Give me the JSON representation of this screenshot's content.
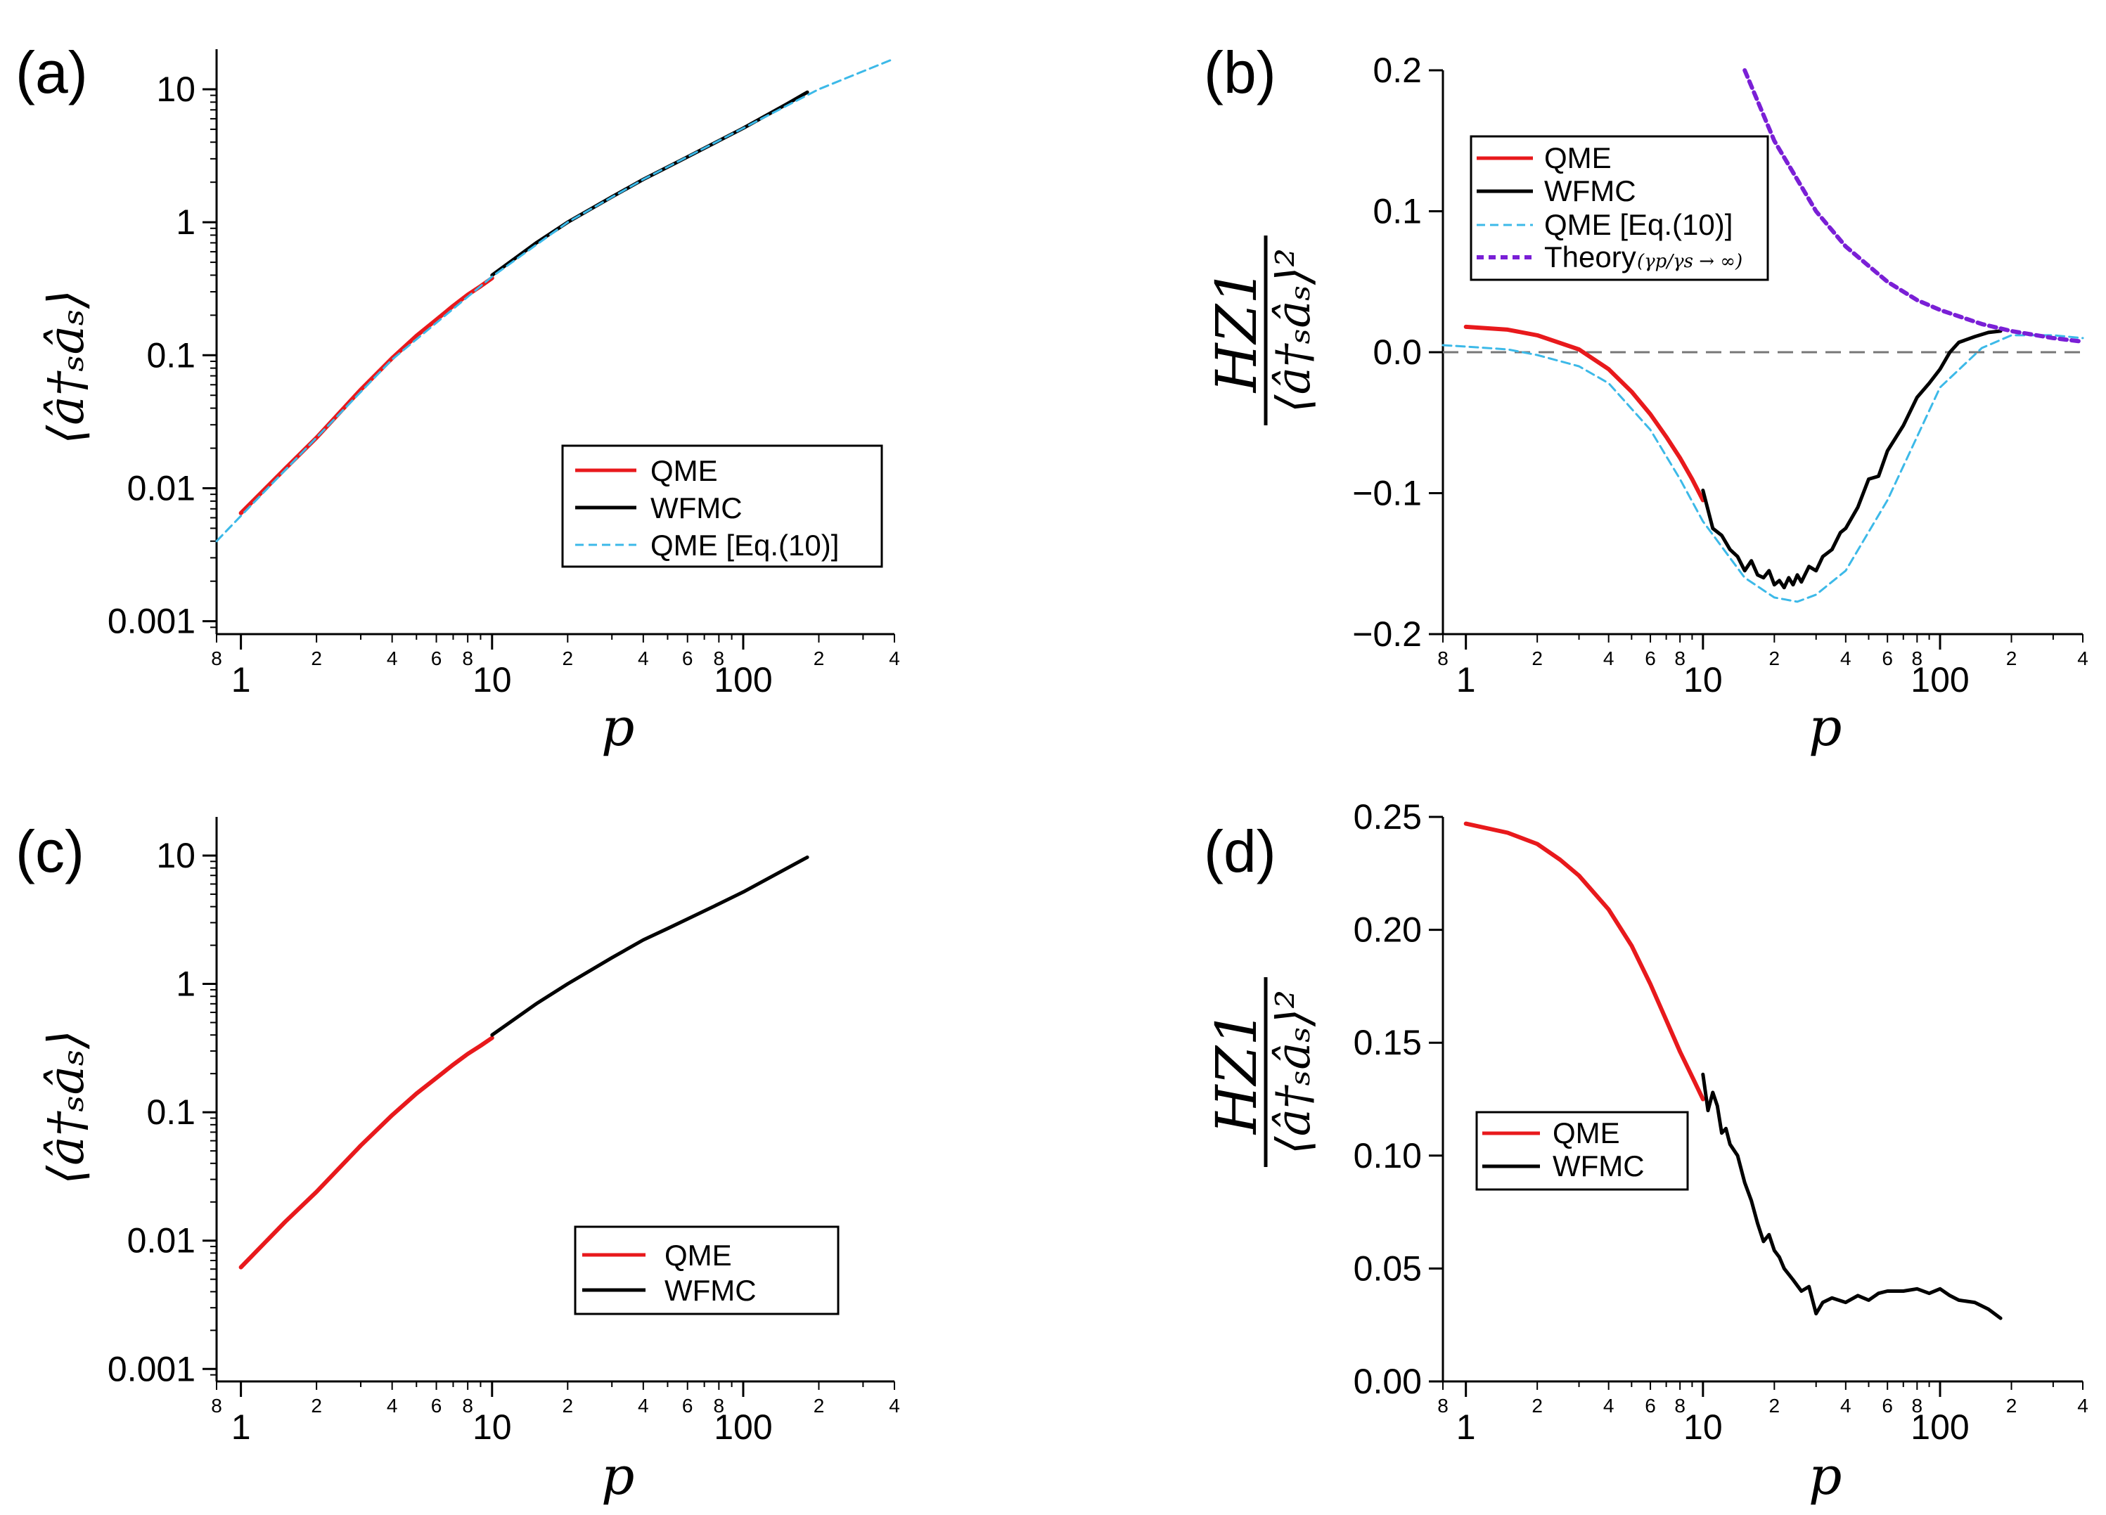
{
  "panels": {
    "a": {
      "label": "(a)"
    },
    "b": {
      "label": "(b)"
    },
    "c": {
      "label": "(c)"
    },
    "d": {
      "label": "(d)"
    }
  },
  "axis_text": {
    "xlabel": "p",
    "ylabel_ac": "⟨â†ₛâₛ⟩",
    "ylabel_bd_top": "HZ1",
    "ylabel_bd_bottom": "⟨â†ₛâₛ⟩²"
  },
  "legend_text": {
    "qme": "QME",
    "wfmc": "WFMC",
    "qme_eq10": "QME [Eq.(10)]",
    "theory": "Theory",
    "theory_note": "(γp/γs → ∞)"
  },
  "colors": {
    "qme": "#e8191c",
    "wfmc": "#000000",
    "qme_eq10": "#3cb9e8",
    "theory": "#7a1fd6",
    "zero_line": "#777777"
  },
  "chart_data": [
    {
      "id": "a",
      "type": "line",
      "x_scale": "log",
      "y_scale": "log",
      "xlim": [
        0.8,
        400
      ],
      "ylim": [
        0.0008,
        20
      ],
      "x_ticks": [
        "1",
        "10",
        "100"
      ],
      "x_minor_ticks": [
        "8",
        "2",
        "4",
        "6",
        "8",
        "2",
        "4",
        "6",
        "8",
        "2",
        "4"
      ],
      "y_ticks": [
        "0.001",
        "0.01",
        "0.1",
        "1",
        "10"
      ],
      "legend": [
        "QME",
        "WFMC",
        "QME [Eq.(10)]"
      ],
      "legend_position": "lower-right",
      "series": [
        {
          "name": "QME",
          "x": [
            1,
            1.5,
            2,
            3,
            4,
            5,
            6,
            7,
            8,
            9,
            10
          ],
          "y": [
            0.0065,
            0.014,
            0.024,
            0.055,
            0.095,
            0.14,
            0.185,
            0.235,
            0.285,
            0.33,
            0.38
          ]
        },
        {
          "name": "WFMC",
          "x": [
            10,
            15,
            20,
            30,
            40,
            50,
            60,
            80,
            100,
            150,
            180
          ],
          "y": [
            0.4,
            0.7,
            1.0,
            1.55,
            2.1,
            2.6,
            3.1,
            4.1,
            5.1,
            7.8,
            9.5
          ]
        },
        {
          "name": "QME [Eq.(10)]",
          "x": [
            0.8,
            1,
            2,
            4,
            10,
            20,
            40,
            100,
            200,
            400
          ],
          "y": [
            0.004,
            0.0062,
            0.024,
            0.093,
            0.39,
            1.0,
            2.1,
            5.1,
            10,
            17
          ]
        }
      ]
    },
    {
      "id": "b",
      "type": "line",
      "x_scale": "log",
      "y_scale": "linear",
      "xlim": [
        0.8,
        400
      ],
      "ylim": [
        -0.2,
        0.2
      ],
      "x_ticks": [
        "1",
        "10",
        "100"
      ],
      "x_minor_ticks": [
        "8",
        "2",
        "4",
        "6",
        "8",
        "2",
        "4",
        "6",
        "8",
        "2",
        "4"
      ],
      "y_ticks": [
        "−0.2",
        "−0.1",
        "0.0",
        "0.1",
        "0.2"
      ],
      "legend": [
        "QME",
        "WFMC",
        "QME [Eq.(10)]",
        "Theory (γp/γs → ∞)"
      ],
      "legend_position": "upper-left",
      "zero_line": true,
      "series": [
        {
          "name": "QME",
          "x": [
            1,
            1.5,
            2,
            3,
            4,
            5,
            6,
            7,
            8,
            9,
            10
          ],
          "y": [
            0.018,
            0.016,
            0.012,
            0.002,
            -0.012,
            -0.028,
            -0.044,
            -0.06,
            -0.075,
            -0.09,
            -0.105
          ]
        },
        {
          "name": "WFMC",
          "x": [
            10,
            11,
            12,
            13,
            14,
            15,
            16,
            17,
            18,
            19,
            20,
            21,
            22,
            23,
            24,
            25,
            26,
            28,
            30,
            32,
            35,
            38,
            40,
            45,
            50,
            55,
            60,
            70,
            80,
            90,
            100,
            110,
            120,
            140,
            160,
            180
          ],
          "y": [
            -0.098,
            -0.125,
            -0.13,
            -0.14,
            -0.145,
            -0.155,
            -0.148,
            -0.158,
            -0.16,
            -0.155,
            -0.165,
            -0.162,
            -0.167,
            -0.16,
            -0.165,
            -0.158,
            -0.163,
            -0.152,
            -0.155,
            -0.145,
            -0.14,
            -0.128,
            -0.125,
            -0.11,
            -0.09,
            -0.088,
            -0.07,
            -0.052,
            -0.032,
            -0.022,
            -0.012,
            0.0,
            0.007,
            0.011,
            0.014,
            0.015
          ]
        },
        {
          "name": "QME [Eq.(10)]",
          "x": [
            0.8,
            1,
            1.5,
            2,
            3,
            4,
            6,
            8,
            10,
            15,
            20,
            25,
            30,
            40,
            60,
            80,
            100,
            150,
            200,
            300,
            400
          ],
          "y": [
            0.005,
            0.004,
            0.002,
            -0.002,
            -0.01,
            -0.022,
            -0.055,
            -0.09,
            -0.12,
            -0.16,
            -0.174,
            -0.177,
            -0.172,
            -0.155,
            -0.105,
            -0.06,
            -0.025,
            0.003,
            0.012,
            0.012,
            0.01
          ]
        },
        {
          "name": "Theory (γp/γs → ∞)",
          "x": [
            15,
            20,
            30,
            40,
            60,
            80,
            100,
            150,
            200,
            300,
            400
          ],
          "y": [
            0.2,
            0.15,
            0.1,
            0.075,
            0.05,
            0.037,
            0.03,
            0.02,
            0.015,
            0.01,
            0.0075
          ]
        }
      ]
    },
    {
      "id": "c",
      "type": "line",
      "x_scale": "log",
      "y_scale": "log",
      "xlim": [
        0.8,
        400
      ],
      "ylim": [
        0.0008,
        20
      ],
      "x_ticks": [
        "1",
        "10",
        "100"
      ],
      "x_minor_ticks": [
        "8",
        "2",
        "4",
        "6",
        "8",
        "2",
        "4",
        "6",
        "8",
        "2",
        "4"
      ],
      "y_ticks": [
        "0.001",
        "0.01",
        "0.1",
        "1",
        "10"
      ],
      "legend": [
        "QME",
        "WFMC"
      ],
      "legend_position": "lower-right",
      "series": [
        {
          "name": "QME",
          "x": [
            1,
            1.5,
            2,
            3,
            4,
            5,
            6,
            7,
            8,
            9,
            10
          ],
          "y": [
            0.0062,
            0.014,
            0.024,
            0.055,
            0.095,
            0.14,
            0.185,
            0.235,
            0.285,
            0.33,
            0.38
          ]
        },
        {
          "name": "WFMC",
          "x": [
            10,
            15,
            20,
            30,
            40,
            50,
            60,
            80,
            100,
            150,
            180
          ],
          "y": [
            0.4,
            0.7,
            1.0,
            1.6,
            2.2,
            2.7,
            3.2,
            4.2,
            5.2,
            8.0,
            9.7
          ]
        }
      ]
    },
    {
      "id": "d",
      "type": "line",
      "x_scale": "log",
      "y_scale": "linear",
      "xlim": [
        0.8,
        400
      ],
      "ylim": [
        0,
        0.25
      ],
      "x_ticks": [
        "1",
        "10",
        "100"
      ],
      "x_minor_ticks": [
        "8",
        "2",
        "4",
        "6",
        "8",
        "2",
        "4",
        "6",
        "8",
        "2",
        "4"
      ],
      "y_ticks": [
        "0.00",
        "0.05",
        "0.10",
        "0.15",
        "0.20",
        "0.25"
      ],
      "legend": [
        "QME",
        "WFMC"
      ],
      "legend_position": "center-left",
      "series": [
        {
          "name": "QME",
          "x": [
            1,
            1.5,
            2,
            2.5,
            3,
            4,
            5,
            6,
            7,
            8,
            9,
            10
          ],
          "y": [
            0.247,
            0.243,
            0.238,
            0.231,
            0.224,
            0.209,
            0.193,
            0.176,
            0.16,
            0.146,
            0.135,
            0.125
          ]
        },
        {
          "name": "WFMC",
          "x": [
            10,
            10.5,
            11,
            11.5,
            12,
            12.5,
            13,
            14,
            15,
            16,
            17,
            18,
            19,
            20,
            21,
            22,
            24,
            26,
            28,
            30,
            32,
            35,
            40,
            45,
            50,
            55,
            60,
            70,
            80,
            90,
            100,
            110,
            120,
            140,
            160,
            180
          ],
          "y": [
            0.136,
            0.12,
            0.128,
            0.122,
            0.11,
            0.112,
            0.105,
            0.1,
            0.088,
            0.08,
            0.07,
            0.062,
            0.065,
            0.058,
            0.055,
            0.05,
            0.045,
            0.04,
            0.042,
            0.03,
            0.035,
            0.037,
            0.035,
            0.038,
            0.036,
            0.039,
            0.04,
            0.04,
            0.041,
            0.039,
            0.041,
            0.038,
            0.036,
            0.035,
            0.032,
            0.028
          ]
        }
      ]
    }
  ]
}
